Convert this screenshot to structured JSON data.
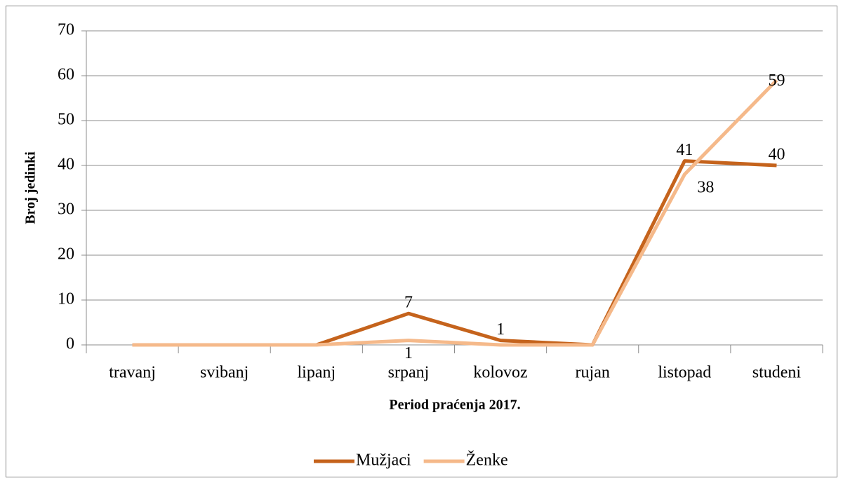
{
  "chart_data": {
    "type": "line",
    "x_label": "Period praćenja 2017.",
    "y_label": "Broj jedinki",
    "categories": [
      "travanj",
      "svibanj",
      "lipanj",
      "srpanj",
      "kolovoz",
      "rujan",
      "listopad",
      "studeni"
    ],
    "series": [
      {
        "name": "Mužjaci",
        "color": "#c5631c",
        "values": [
          0,
          0,
          0,
          7,
          1,
          0,
          41,
          40
        ],
        "value_labels": [
          null,
          null,
          null,
          "7",
          "1",
          null,
          "41",
          "40"
        ]
      },
      {
        "name": "Ženke",
        "color": "#f5b98a",
        "values": [
          0,
          0,
          0,
          1,
          0,
          0,
          38,
          59
        ],
        "value_labels": [
          null,
          null,
          null,
          "1",
          null,
          null,
          "38",
          "59"
        ]
      }
    ],
    "ylim": [
      0,
      70
    ],
    "yticks": [
      0,
      10,
      20,
      30,
      40,
      50,
      60,
      70
    ],
    "grid": true,
    "legend": "bottom"
  }
}
